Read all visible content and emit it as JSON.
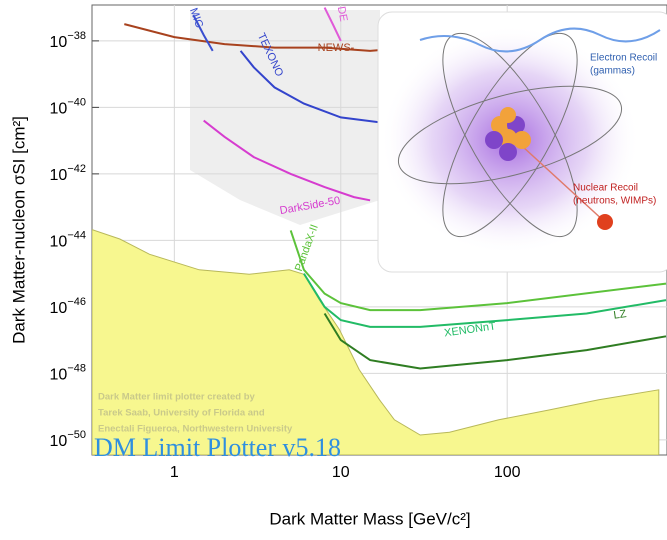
{
  "chart_data": {
    "type": "line",
    "xlabel": "Dark Matter Mass [GeV/c²]",
    "ylabel": "Dark Matter-nucleon σSI [cm²]",
    "log_x": true,
    "log_y": true,
    "grid": true,
    "xlim": [
      0.32,
      900
    ],
    "ylim": [
      3.5e-51,
      1.2e-37
    ],
    "xticks": [
      1,
      10,
      100
    ],
    "yticks": [
      {
        "value": 1e-38,
        "label": "10−38"
      },
      {
        "value": 1e-40,
        "label": "10−40"
      },
      {
        "value": 1e-42,
        "label": "10−42"
      },
      {
        "value": 1e-44,
        "label": "10−44"
      },
      {
        "value": 1e-46,
        "label": "10−46"
      },
      {
        "value": 1e-48,
        "label": "10−48"
      },
      {
        "value": 1e-50,
        "label": "10−50"
      }
    ],
    "series": [
      {
        "name": "PandaX-II",
        "color": "#5cc23a",
        "x": [
          5,
          6,
          8,
          10,
          15,
          30,
          100,
          900
        ],
        "values": [
          2e-44,
          1.3e-45,
          2.5e-46,
          1.3e-46,
          8e-47,
          8e-47,
          1.3e-46,
          5e-46
        ]
      },
      {
        "name": "XENONnT",
        "color": "#22bb66",
        "x": [
          6,
          8,
          10,
          15,
          30,
          100,
          300,
          900
        ],
        "values": [
          1e-45,
          1e-46,
          4e-47,
          2.5e-47,
          2.5e-47,
          4e-47,
          6.3e-47,
          1.6e-46
        ]
      },
      {
        "name": "LZ",
        "color": "#2f7d22",
        "x": [
          8,
          10,
          15,
          30,
          100,
          300,
          900
        ],
        "values": [
          6.3e-47,
          1e-47,
          2.5e-48,
          1.4e-48,
          2.5e-48,
          5e-48,
          1.3e-47
        ]
      },
      {
        "name": "DarkSide-50",
        "color": "#d63ccf",
        "x": [
          1.5,
          2,
          3,
          5,
          8,
          12,
          15
        ],
        "values": [
          4e-41,
          1.3e-41,
          3.2e-42,
          1e-42,
          4e-43,
          2e-43,
          1.6e-43
        ]
      },
      {
        "name": "TEXONO",
        "color": "#3344cc",
        "x": [
          2.5,
          3,
          4,
          6,
          10,
          20
        ],
        "values": [
          5e-39,
          1.6e-39,
          4e-40,
          1.3e-40,
          5e-41,
          3.2e-41
        ]
      },
      {
        "name": "NEWS-",
        "color": "#a8421e",
        "x": [
          0.5,
          1,
          2,
          4,
          8,
          15,
          25
        ],
        "values": [
          3.2e-38,
          1.3e-38,
          8e-39,
          6.3e-39,
          6.3e-39,
          5e-39,
          6.3e-39
        ]
      },
      {
        "name": "MIC",
        "color": "#3a4fd0",
        "x": [
          1.3,
          1.5,
          1.7
        ],
        "values": [
          6e-38,
          1.5e-38,
          5e-39
        ]
      },
      {
        "name": "DE",
        "color": "#e05ad8",
        "x": [
          8,
          9,
          10
        ],
        "values": [
          1e-37,
          3e-38,
          1e-38
        ]
      }
    ],
    "floor": {
      "color": "#f7f78f",
      "x": [
        0.32,
        0.47,
        0.71,
        1.41,
        2.82,
        4.9,
        6.0,
        7.4,
        9.8,
        12.9,
        17.1,
        21,
        30,
        45,
        89,
        178,
        355,
        815
      ],
      "values": [
        2.1e-44,
        1.1e-44,
        3.8e-45,
        1.3e-45,
        9.5e-46,
        1.3e-45,
        9.5e-46,
        1.7e-46,
        2.1e-47,
        1.3e-48,
        1.6e-49,
        4e-50,
        1.4e-50,
        1.7e-50,
        4e-50,
        7.9e-50,
        1.6e-49,
        3.2e-49
      ]
    },
    "credits": [
      "Dark Matter limit plotter created by",
      "Tarek Saab, University of Florida and",
      "Enectali Figueroa, Northwestern University"
    ],
    "version": "DM Limit Plotter v5.18",
    "inset": {
      "electron_recoil": [
        "Electron Recoil",
        "(gammas)"
      ],
      "nuclear_recoil": [
        "Nuclear Recoil",
        "(neutrons, WIMPs)"
      ]
    }
  }
}
